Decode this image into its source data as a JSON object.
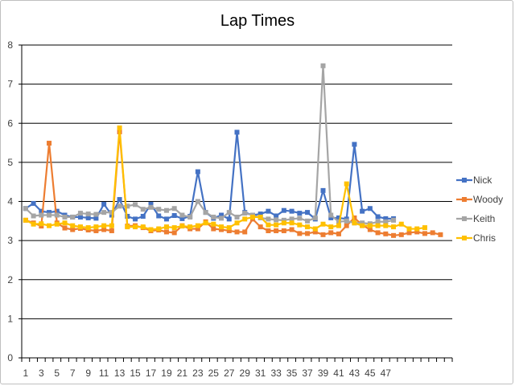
{
  "chart_data": {
    "type": "line",
    "title": "Lap Times",
    "xlabel": "",
    "ylabel": "",
    "ylim": [
      0,
      8
    ],
    "y_ticks": [
      "0",
      "1",
      "2",
      "3",
      "4",
      "5",
      "6",
      "7",
      "8"
    ],
    "x_count": 55,
    "x_tick_labels": [
      "1",
      "3",
      "5",
      "7",
      "9",
      "11",
      "13",
      "15",
      "17",
      "19",
      "21",
      "23",
      "25",
      "27",
      "29",
      "31",
      "33",
      "35",
      "37",
      "39",
      "41",
      "43",
      "45",
      "47"
    ],
    "grid": "horizontal",
    "legend_position": "right",
    "series": [
      {
        "name": "Nick",
        "color": "#4472c4",
        "values": [
          3.82,
          3.95,
          3.75,
          3.72,
          3.75,
          3.65,
          3.6,
          3.6,
          3.58,
          3.57,
          3.93,
          3.65,
          4.05,
          3.62,
          3.55,
          3.62,
          3.93,
          3.63,
          3.55,
          3.64,
          3.56,
          3.62,
          4.76,
          3.72,
          3.57,
          3.65,
          3.55,
          5.77,
          3.72,
          3.65,
          3.68,
          3.75,
          3.63,
          3.77,
          3.75,
          3.7,
          3.72,
          3.55,
          4.28,
          3.58,
          3.58,
          3.55,
          5.46,
          3.75,
          3.82,
          3.61,
          3.56,
          3.56
        ]
      },
      {
        "name": "Woody",
        "color": "#ed7d31",
        "values": [
          3.52,
          3.45,
          3.37,
          5.49,
          3.45,
          3.32,
          3.28,
          3.31,
          3.27,
          3.25,
          3.28,
          3.25,
          5.78,
          3.37,
          3.38,
          3.33,
          3.25,
          3.27,
          3.22,
          3.2,
          3.38,
          3.3,
          3.3,
          3.48,
          3.3,
          3.28,
          3.25,
          3.22,
          3.22,
          3.55,
          3.35,
          3.25,
          3.25,
          3.25,
          3.28,
          3.18,
          3.18,
          3.22,
          3.15,
          3.2,
          3.17,
          3.38,
          3.58,
          3.4,
          3.28,
          3.2,
          3.17,
          3.13,
          3.15,
          3.2,
          3.22,
          3.18,
          3.2,
          3.15
        ]
      },
      {
        "name": "Keith",
        "color": "#a5a5a5",
        "values": [
          3.82,
          3.63,
          3.65,
          3.65,
          3.65,
          3.6,
          3.6,
          3.7,
          3.68,
          3.67,
          3.72,
          3.72,
          3.88,
          3.88,
          3.92,
          3.8,
          3.85,
          3.8,
          3.77,
          3.82,
          3.65,
          3.6,
          4.0,
          3.72,
          3.6,
          3.57,
          3.72,
          3.6,
          3.7,
          3.65,
          3.58,
          3.55,
          3.53,
          3.52,
          3.55,
          3.57,
          3.5,
          3.58,
          7.47,
          3.65,
          3.48,
          3.5,
          3.45,
          3.45,
          3.43,
          3.48,
          3.48,
          3.52
        ]
      },
      {
        "name": "Chris",
        "color": "#ffc000",
        "values": [
          3.52,
          3.42,
          3.43,
          3.38,
          3.42,
          3.45,
          3.38,
          3.35,
          3.33,
          3.35,
          3.38,
          3.38,
          5.88,
          3.35,
          3.35,
          3.35,
          3.28,
          3.3,
          3.35,
          3.33,
          3.37,
          3.35,
          3.38,
          3.45,
          3.42,
          3.35,
          3.33,
          3.45,
          3.55,
          3.6,
          3.6,
          3.4,
          3.4,
          3.45,
          3.45,
          3.4,
          3.35,
          3.3,
          3.42,
          3.35,
          3.38,
          4.45,
          3.45,
          3.38,
          3.38,
          3.38,
          3.38,
          3.35,
          3.42,
          3.3,
          3.3,
          3.33
        ]
      }
    ]
  }
}
